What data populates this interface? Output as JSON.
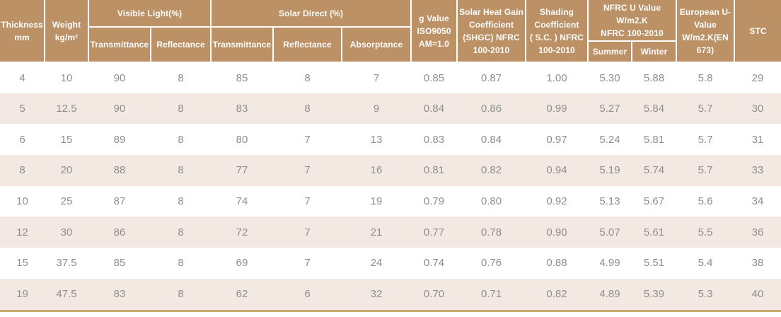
{
  "colors": {
    "header-bg": "#bd9166",
    "header-text": "#fdfdfc",
    "stripe-bg": "#f3e9e2",
    "data-text": "#8e8e8e",
    "bottom-line": "#cbaa72"
  },
  "table": {
    "header": {
      "thickness": "Thickness\nmm",
      "weight": "Weight\nkg/m²",
      "visible_light_group": "Visible Light(%)",
      "visible_light_transmittance": "Transmittance",
      "visible_light_reflectance": "Reflectance",
      "solar_direct_group": "Solar  Direct (%)",
      "solar_direct_transmittance": "Transmittance",
      "solar_direct_reflectance": "Reflectance",
      "solar_direct_absorptance": "Absorptance",
      "g_value": "g Value\nISO9050\nAM=1.0",
      "shgc": "Solar Heat Gain\nCoefficient\n(SHGC) NFRC\n100-2010",
      "shading_coefficient": "Shading\nCoefficient\n( S.C. ) NFRC\n100-2010",
      "nfrc_u_value_group": "NFRC U Value\nW/m2.K\nNFRC 100-2010",
      "nfrc_summer": "Summer",
      "nfrc_winter": "Winter",
      "european_u_value": "European U-\nValue\nW/m2.K(EN\n673)",
      "stc": "STC"
    },
    "rows": [
      [
        "4",
        "10",
        "90",
        "8",
        "85",
        "8",
        "7",
        "0.85",
        "0.87",
        "1.00",
        "5.30",
        "5.88",
        "5.8",
        "29"
      ],
      [
        "5",
        "12.5",
        "90",
        "8",
        "83",
        "8",
        "9",
        "0.84",
        "0.86",
        "0.99",
        "5.27",
        "5.84",
        "5.7",
        "30"
      ],
      [
        "6",
        "15",
        "89",
        "8",
        "80",
        "7",
        "13",
        "0.83",
        "0.84",
        "0.97",
        "5.24",
        "5.81",
        "5.7",
        "31"
      ],
      [
        "8",
        "20",
        "88",
        "8",
        "77",
        "7",
        "16",
        "0.81",
        "0.82",
        "0.94",
        "5.19",
        "5.74",
        "5.7",
        "33"
      ],
      [
        "10",
        "25",
        "87",
        "8",
        "74",
        "7",
        "19",
        "0.79",
        "0.80",
        "0.92",
        "5.13",
        "5.67",
        "5.6",
        "34"
      ],
      [
        "12",
        "30",
        "86",
        "8",
        "72",
        "7",
        "21",
        "0.77",
        "0.78",
        "0.90",
        "5.07",
        "5.61",
        "5.5",
        "36"
      ],
      [
        "15",
        "37.5",
        "85",
        "8",
        "69",
        "7",
        "24",
        "0.74",
        "0.76",
        "0.88",
        "4.99",
        "5.51",
        "5.4",
        "38"
      ],
      [
        "19",
        "47.5",
        "83",
        "8",
        "62",
        "6",
        "32",
        "0.70",
        "0.71",
        "0.82",
        "4.89",
        "5.39",
        "5.3",
        "40"
      ]
    ]
  }
}
